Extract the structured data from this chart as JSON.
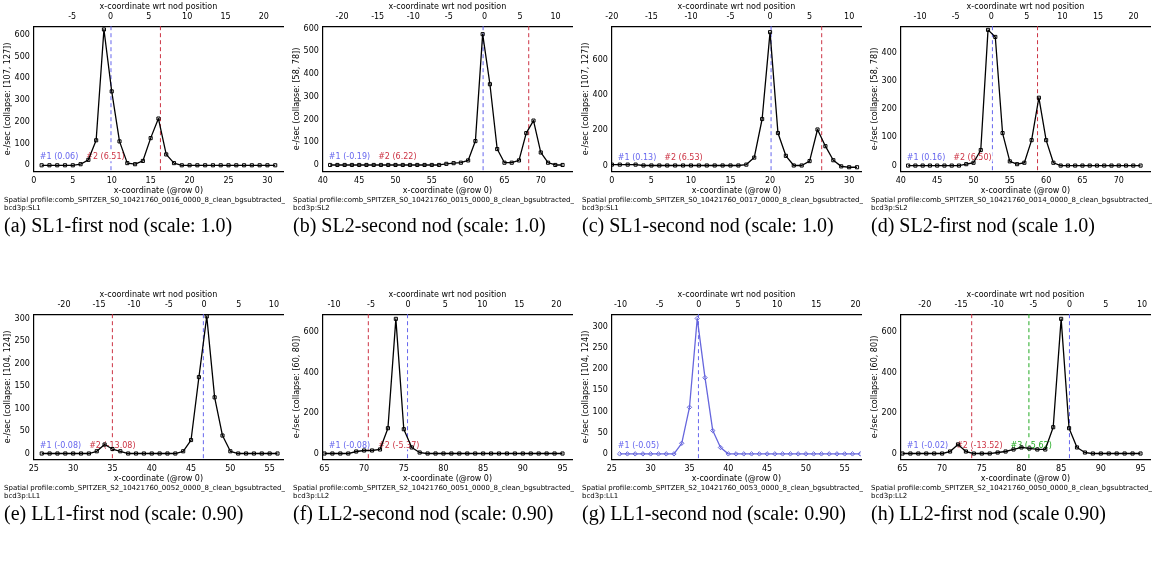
{
  "chart_data": [
    {
      "type": "line",
      "xlabel": "x-coordinate (@row 0)",
      "ylabel": "e-/sec (collapse: [107, 127])",
      "x2label": "x-coordinate wrt nod position",
      "marker": "square",
      "line_style": "solid",
      "x": [
        1,
        2,
        3,
        4,
        5,
        6,
        7,
        8,
        9,
        10,
        11,
        12,
        13,
        14,
        15,
        16,
        17,
        18,
        19,
        20,
        21,
        22,
        23,
        24,
        25,
        26,
        27,
        28,
        29,
        30,
        31
      ],
      "series": [
        {
          "color": "#000000",
          "values": [
            0,
            0,
            0,
            0,
            0,
            5,
            25,
            115,
            625,
            340,
            110,
            10,
            5,
            20,
            125,
            215,
            50,
            10,
            0,
            0,
            0,
            0,
            0,
            0,
            0,
            0,
            0,
            0,
            0,
            0,
            0
          ]
        }
      ],
      "xlim": [
        0,
        32
      ],
      "xticks": [
        0,
        5,
        10,
        15,
        20,
        25,
        30
      ],
      "x2lim": [
        -10,
        22.5
      ],
      "x2ticks": [
        -5,
        0,
        5,
        10,
        15,
        20
      ],
      "ylim": [
        -30,
        640
      ],
      "yticks": [
        0,
        100,
        200,
        300,
        400,
        500,
        600
      ],
      "ref_lines": [
        {
          "axis": "x2",
          "value": 0.06,
          "label": "#1 (0.06)",
          "color": "#6666ee",
          "line_style": "dashed"
        },
        {
          "axis": "x2",
          "value": 6.51,
          "label": "#2 (6.51)",
          "color": "#cc3344",
          "line_style": "dashed"
        }
      ],
      "annotations": [
        "Spatial profile:comb_SPITZER_S0_10421760_0016_0000_8_clean_bgsubtracted_bcd3p:SL1",
        "(a) SL1-first nod (scale: 1.0)"
      ]
    },
    {
      "type": "line",
      "xlabel": "x-coordinate (@row 0)",
      "ylabel": "e-/sec (collapse: [58, 78])",
      "x2label": "x-coordinate wrt nod position",
      "marker": "square",
      "line_style": "solid",
      "x": [
        41,
        42,
        43,
        44,
        45,
        46,
        47,
        48,
        49,
        50,
        51,
        52,
        53,
        54,
        55,
        56,
        57,
        58,
        59,
        60,
        61,
        62,
        63,
        64,
        65,
        66,
        67,
        68,
        69,
        70,
        71,
        72,
        73
      ],
      "series": [
        {
          "color": "#000000",
          "values": [
            0,
            0,
            0,
            0,
            0,
            0,
            0,
            0,
            0,
            0,
            0,
            0,
            0,
            0,
            0,
            0,
            5,
            8,
            10,
            20,
            105,
            575,
            355,
            70,
            10,
            10,
            20,
            140,
            195,
            55,
            10,
            0,
            0
          ]
        }
      ],
      "xlim": [
        40,
        74.3
      ],
      "xticks": [
        40,
        45,
        50,
        55,
        60,
        65,
        70
      ],
      "x2lim": [
        -22.7,
        12.3
      ],
      "x2ticks": [
        -20,
        -15,
        -10,
        -5,
        0,
        5,
        10
      ],
      "ylim": [
        -30,
        610
      ],
      "yticks": [
        0,
        100,
        200,
        300,
        400,
        500,
        600
      ],
      "ref_lines": [
        {
          "axis": "x2",
          "value": -0.19,
          "label": "#1 (-0.19)",
          "color": "#6666ee",
          "line_style": "dashed"
        },
        {
          "axis": "x2",
          "value": 6.22,
          "label": "#2 (6.22)",
          "color": "#cc3344",
          "line_style": "dashed"
        }
      ],
      "annotations": [
        "Spatial profile:comb_SPITZER_S0_10421760_0015_0000_8_clean_bgsubtracted_bcd3p:SL2",
        "(b) SL2-second nod (scale: 1.0)"
      ]
    },
    {
      "type": "line",
      "xlabel": "x-coordinate (@row 0)",
      "ylabel": "e-/sec (collapse: [107, 127])",
      "x2label": "x-coordinate wrt nod position",
      "marker": "square",
      "line_style": "solid",
      "x": [
        0,
        1,
        2,
        3,
        4,
        5,
        6,
        7,
        8,
        9,
        10,
        11,
        12,
        13,
        14,
        15,
        16,
        17,
        18,
        19,
        20,
        21,
        22,
        23,
        24,
        25,
        26,
        27,
        28,
        29,
        30,
        31
      ],
      "series": [
        {
          "color": "#000000",
          "values": [
            5,
            5,
            5,
            5,
            0,
            0,
            0,
            0,
            0,
            0,
            0,
            0,
            0,
            0,
            0,
            0,
            0,
            5,
            45,
            265,
            760,
            185,
            55,
            0,
            0,
            25,
            205,
            110,
            30,
            -5,
            -10,
            -10
          ]
        }
      ],
      "xlim": [
        0,
        31.5
      ],
      "xticks": [
        0,
        5,
        10,
        15,
        20,
        25,
        30
      ],
      "x2lim": [
        -20,
        11.5
      ],
      "x2ticks": [
        -20,
        -15,
        -10,
        -5,
        0,
        5,
        10
      ],
      "ylim": [
        -36,
        794
      ],
      "yticks": [
        0,
        200,
        400,
        600
      ],
      "ref_lines": [
        {
          "axis": "x2",
          "value": 0.13,
          "label": "#1 (0.13)",
          "color": "#6666ee",
          "line_style": "dashed"
        },
        {
          "axis": "x2",
          "value": 6.53,
          "label": "#2 (6.53)",
          "color": "#cc3344",
          "line_style": "dashed"
        }
      ],
      "annotations": [
        "Spatial profile:comb_SPITZER_S0_10421760_0017_0000_8_clean_bgsubtracted_bcd3p:SL1",
        "(c) SL1-second nod (scale: 1.0)"
      ]
    },
    {
      "type": "line",
      "xlabel": "x-coordinate (@row 0)",
      "ylabel": "e-/sec (collapse: [58, 78])",
      "x2label": "x-coordinate wrt nod position",
      "marker": "square",
      "line_style": "solid",
      "x": [
        41,
        42,
        43,
        44,
        45,
        46,
        47,
        48,
        49,
        50,
        51,
        52,
        53,
        54,
        55,
        56,
        57,
        58,
        59,
        60,
        61,
        62,
        63,
        64,
        65,
        66,
        67,
        68,
        69,
        70,
        71,
        72,
        73
      ],
      "series": [
        {
          "color": "#000000",
          "values": [
            0,
            0,
            0,
            0,
            0,
            0,
            0,
            0,
            5,
            10,
            55,
            480,
            455,
            115,
            15,
            5,
            10,
            90,
            240,
            90,
            10,
            0,
            0,
            0,
            0,
            0,
            0,
            0,
            0,
            0,
            0,
            0,
            0
          ]
        }
      ],
      "xlim": [
        40,
        74.3
      ],
      "xticks": [
        40,
        45,
        50,
        55,
        60,
        65,
        70
      ],
      "x2lim": [
        -12.7,
        22.3
      ],
      "x2ticks": [
        -10,
        -5,
        0,
        5,
        10,
        15,
        20
      ],
      "ylim": [
        -22,
        493
      ],
      "yticks": [
        0,
        100,
        200,
        300,
        400
      ],
      "ref_lines": [
        {
          "axis": "x2",
          "value": 0.16,
          "label": "#1 (0.16)",
          "color": "#6666ee",
          "line_style": "dashed"
        },
        {
          "axis": "x2",
          "value": 6.5,
          "label": "#2 (6.50)",
          "color": "#cc3344",
          "line_style": "dashed"
        }
      ],
      "annotations": [
        "Spatial profile:comb_SPITZER_S0_10421760_0014_0000_8_clean_bgsubtracted_bcd3p:SL2",
        "(d) SL2-first nod (scale 1.0)"
      ]
    },
    {
      "type": "line",
      "xlabel": "x-coordinate (@row 0)",
      "ylabel": "e-/sec (collapse: [104, 124])",
      "x2label": "x-coordinate wrt nod position",
      "marker": "square",
      "line_style": "solid",
      "x": [
        26,
        27,
        28,
        29,
        30,
        31,
        32,
        33,
        34,
        35,
        36,
        37,
        38,
        39,
        40,
        41,
        42,
        43,
        44,
        45,
        46,
        47,
        48,
        49,
        50,
        51,
        52,
        53,
        54,
        55,
        56
      ],
      "series": [
        {
          "color": "#000000",
          "values": [
            0,
            0,
            0,
            0,
            0,
            0,
            0,
            5,
            20,
            10,
            5,
            0,
            0,
            0,
            0,
            0,
            0,
            0,
            5,
            30,
            170,
            305,
            125,
            40,
            5,
            0,
            0,
            0,
            0,
            0,
            0
          ]
        }
      ],
      "xlim": [
        25,
        56.7
      ],
      "xticks": [
        25,
        30,
        35,
        40,
        45,
        50,
        55
      ],
      "x2lim": [
        -24.3,
        11.3
      ],
      "x2ticks": [
        -20,
        -15,
        -10,
        -5,
        0,
        5,
        10
      ],
      "ylim": [
        -14,
        310
      ],
      "yticks": [
        0,
        50,
        100,
        150,
        200,
        250,
        300
      ],
      "ref_lines": [
        {
          "axis": "x2",
          "value": -0.08,
          "label": "#1 (-0.08)",
          "color": "#6666ee",
          "line_style": "dashed"
        },
        {
          "axis": "x2",
          "value": -13.08,
          "label": "#2 (-13.08)",
          "color": "#cc3344",
          "line_style": "dashed"
        }
      ],
      "annotations": [
        "Spatial profile:comb_SPITZER_S2_10421760_0052_0000_8_clean_bgsubtracted_bcd3p:LL1",
        "(e) LL1-first nod (scale: 0.90)"
      ]
    },
    {
      "type": "line",
      "xlabel": "x-coordinate (@row 0)",
      "ylabel": "e-/sec (collapse: [60, 80])",
      "x2label": "x-coordinate wrt nod position",
      "marker": "square",
      "line_style": "solid",
      "x": [
        65,
        66,
        67,
        68,
        69,
        70,
        71,
        72,
        73,
        74,
        75,
        76,
        77,
        78,
        79,
        80,
        81,
        82,
        83,
        84,
        85,
        86,
        87,
        88,
        89,
        90,
        91,
        92,
        93,
        94,
        95
      ],
      "series": [
        {
          "color": "#000000",
          "values": [
            0,
            0,
            0,
            0,
            10,
            15,
            15,
            20,
            125,
            665,
            120,
            30,
            5,
            0,
            0,
            0,
            0,
            0,
            0,
            0,
            0,
            0,
            0,
            0,
            0,
            0,
            0,
            0,
            0,
            0,
            0
          ]
        }
      ],
      "xlim": [
        64.8,
        96.2
      ],
      "xticks": [
        65,
        70,
        75,
        80,
        85,
        90,
        95
      ],
      "x2lim": [
        -11.5,
        22.1
      ],
      "x2ticks": [
        -10,
        -5,
        0,
        5,
        10,
        15,
        20
      ],
      "ylim": [
        -31,
        688
      ],
      "yticks": [
        0,
        200,
        400,
        600
      ],
      "ref_lines": [
        {
          "axis": "x2",
          "value": -0.08,
          "label": "#1 (-0.08)",
          "color": "#6666ee",
          "line_style": "dashed"
        },
        {
          "axis": "x2",
          "value": -5.37,
          "label": "#2 (-5.37)",
          "color": "#cc3344",
          "line_style": "dashed"
        }
      ],
      "annotations": [
        "Spatial profile:comb_SPITZER_S2_10421760_0051_0000_8_clean_bgsubtracted_bcd3p:LL2",
        "(f) LL2-second nod (scale: 0.90)"
      ]
    },
    {
      "type": "line",
      "xlabel": "x-coordinate (@row 0)",
      "ylabel": "e-/sec (collapse: [104, 124])",
      "x2label": "x-coordinate wrt nod position",
      "marker": "diamond",
      "line_style": "solid",
      "x": [
        26,
        27,
        28,
        29,
        30,
        31,
        32,
        33,
        34,
        35,
        36,
        37,
        38,
        39,
        40,
        41,
        42,
        43,
        44,
        45,
        46,
        47,
        48,
        49,
        50,
        51,
        52,
        53,
        54,
        55,
        56,
        57
      ],
      "series": [
        {
          "color": "#6666dd",
          "values": [
            0,
            0,
            0,
            0,
            0,
            0,
            0,
            0,
            25,
            110,
            320,
            180,
            55,
            15,
            0,
            0,
            0,
            0,
            0,
            0,
            0,
            0,
            0,
            0,
            0,
            0,
            0,
            0,
            0,
            0,
            0,
            0
          ]
        }
      ],
      "xlim": [
        25,
        57.1
      ],
      "xticks": [
        25,
        30,
        35,
        40,
        45,
        50,
        55
      ],
      "x2lim": [
        -11.1,
        20.7
      ],
      "x2ticks": [
        -10,
        -5,
        0,
        5,
        10,
        15,
        20
      ],
      "ylim": [
        -14,
        330
      ],
      "yticks": [
        0,
        50,
        100,
        150,
        200,
        250,
        300
      ],
      "ref_lines": [
        {
          "axis": "x2",
          "value": -0.05,
          "label": "#1 (-0.05)",
          "color": "#6666ee",
          "line_style": "dashed"
        }
      ],
      "annotations": [
        "Spatial profile:comb_SPITZER_S2_10421760_0053_0000_8_clean_bgsubtracted_bcd3p:LL1",
        "(g) LL1-second nod (scale: 0.90)"
      ]
    },
    {
      "type": "line",
      "xlabel": "x-coordinate (@row 0)",
      "ylabel": "e-/sec (collapse: [60, 80])",
      "x2label": "x-coordinate wrt nod position",
      "marker": "square",
      "line_style": "solid",
      "x": [
        65,
        66,
        67,
        68,
        69,
        70,
        71,
        72,
        73,
        74,
        75,
        76,
        77,
        78,
        79,
        80,
        81,
        82,
        83,
        84,
        85,
        86,
        87,
        88,
        89,
        90,
        91,
        92,
        93,
        94,
        95
      ],
      "series": [
        {
          "color": "#000000",
          "values": [
            0,
            0,
            0,
            0,
            0,
            0,
            10,
            45,
            10,
            0,
            0,
            0,
            5,
            10,
            20,
            30,
            25,
            20,
            20,
            130,
            665,
            125,
            30,
            5,
            0,
            0,
            0,
            0,
            0,
            0,
            0
          ]
        }
      ],
      "xlim": [
        64.8,
        96.2
      ],
      "xticks": [
        65,
        70,
        75,
        80,
        85,
        90,
        95
      ],
      "x2lim": [
        -23.3,
        11.1
      ],
      "x2ticks": [
        -20,
        -15,
        -10,
        -5,
        0,
        5,
        10
      ],
      "ylim": [
        -31,
        688
      ],
      "yticks": [
        0,
        200,
        400,
        600
      ],
      "ref_lines": [
        {
          "axis": "x2",
          "value": -0.02,
          "label": "#1 (-0.02)",
          "color": "#6666ee",
          "line_style": "dashed"
        },
        {
          "axis": "x2",
          "value": -13.52,
          "label": "#2 (-13.52)",
          "color": "#cc3344",
          "line_style": "dashed"
        },
        {
          "axis": "x2",
          "value": -5.62,
          "label": "#3 (-5.62)",
          "color": "#22aa22",
          "line_style": "dashed"
        }
      ],
      "annotations": [
        "Spatial profile:comb_SPITZER_S2_10421760_0050_0000_8_clean_bgsubtracted_bcd3p:LL2",
        "(h) LL2-first nod (scale 0.90)"
      ]
    }
  ]
}
